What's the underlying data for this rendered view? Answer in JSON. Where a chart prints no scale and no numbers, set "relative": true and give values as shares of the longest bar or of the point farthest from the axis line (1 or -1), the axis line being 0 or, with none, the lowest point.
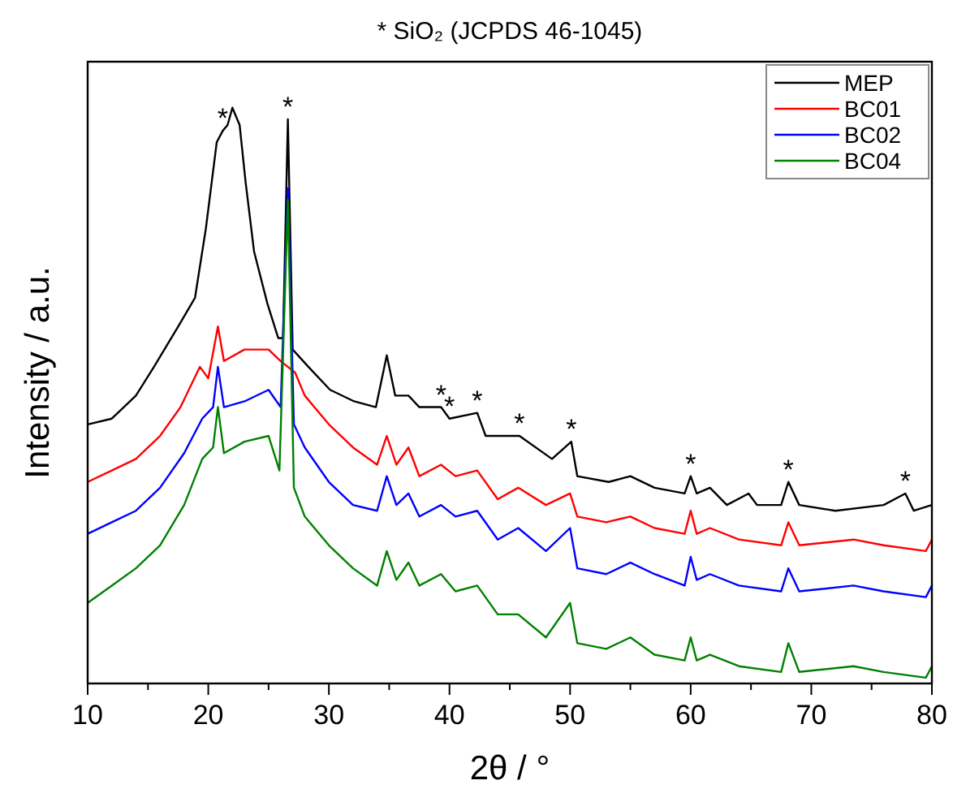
{
  "chart_data": {
    "type": "line",
    "title": "* SiO₂ (JCPDS 46-1045)",
    "xlabel": "2θ / °",
    "ylabel": "Intensity / a.u.",
    "relative": true,
    "xlim": [
      10,
      80
    ],
    "xticks": [
      10,
      {
        "value": 15,
        "label": null
      },
      20,
      {
        "value": 25,
        "label": null
      },
      30,
      {
        "value": 35,
        "label": null
      },
      40,
      {
        "value": 45,
        "label": null
      },
      50,
      {
        "value": 55,
        "label": null
      },
      60,
      {
        "value": 65,
        "label": null
      },
      70,
      {
        "value": 75,
        "label": null
      },
      80
    ],
    "legend": "top right",
    "grid": false,
    "line_style": "solid",
    "series": [
      {
        "name": "MEP",
        "color": "#000000",
        "x": [
          10,
          12,
          14,
          15.5,
          17.5,
          18.9,
          19.8,
          20.7,
          21.2,
          21.6,
          22,
          22.6,
          23.1,
          23.8,
          24.9,
          25.8,
          26.2,
          26.6,
          27,
          28.3,
          30.1,
          32.1,
          33.9,
          34.8,
          35.5,
          36.6,
          37.5,
          39.3,
          40,
          42.3,
          43,
          45.8,
          48.5,
          50.1,
          50.6,
          53.2,
          55,
          57,
          59.5,
          60,
          60.5,
          61.6,
          63,
          64.8,
          65.5,
          67.5,
          68.1,
          69,
          72,
          76,
          77.8,
          78.5,
          80
        ],
        "values": [
          0.45,
          0.46,
          0.5,
          0.55,
          0.62,
          0.67,
          0.79,
          0.94,
          0.96,
          0.97,
          1,
          0.97,
          0.87,
          0.75,
          0.66,
          0.6,
          0.6,
          0.98,
          0.58,
          0.55,
          0.51,
          0.49,
          0.48,
          0.57,
          0.5,
          0.5,
          0.48,
          0.48,
          0.46,
          0.47,
          0.43,
          0.43,
          0.39,
          0.42,
          0.36,
          0.35,
          0.36,
          0.34,
          0.33,
          0.36,
          0.33,
          0.34,
          0.31,
          0.33,
          0.31,
          0.31,
          0.35,
          0.31,
          0.3,
          0.31,
          0.33,
          0.3,
          0.31
        ]
      },
      {
        "name": "BC01",
        "color": "#ff0000",
        "x": [
          10,
          12,
          14,
          16,
          17.7,
          19.3,
          20,
          20.8,
          21.3,
          23,
          25,
          26,
          26.6,
          27.2,
          28,
          30,
          32,
          34,
          34.8,
          35.6,
          36.6,
          37.5,
          39.3,
          40.5,
          42.3,
          44,
          45.7,
          48,
          50,
          50.6,
          53,
          55,
          57,
          59.5,
          60,
          60.5,
          61.6,
          64,
          67.5,
          68.1,
          69,
          73.5,
          76,
          79.5,
          80
        ],
        "values": [
          0.35,
          0.37,
          0.39,
          0.43,
          0.48,
          0.55,
          0.53,
          0.62,
          0.56,
          0.58,
          0.58,
          0.56,
          null,
          0.54,
          0.5,
          0.45,
          0.41,
          0.38,
          0.43,
          0.38,
          0.41,
          0.36,
          0.38,
          0.36,
          0.37,
          0.32,
          0.34,
          0.31,
          0.33,
          0.29,
          0.28,
          0.29,
          0.27,
          0.26,
          0.3,
          0.26,
          0.27,
          0.25,
          0.24,
          0.28,
          0.24,
          0.25,
          0.24,
          0.23,
          0.25
        ]
      },
      {
        "name": "BC02",
        "color": "#0000ff",
        "x": [
          10,
          12,
          14,
          16,
          18,
          19.5,
          20.4,
          20.8,
          21.3,
          23,
          25,
          26,
          26.6,
          27.1,
          28,
          30,
          32,
          34,
          34.8,
          35.6,
          36.6,
          37.5,
          39.3,
          40.5,
          42.3,
          44,
          45.7,
          48,
          50,
          50.6,
          53,
          55,
          57,
          59.5,
          60,
          60.5,
          61.6,
          64,
          67.5,
          68.1,
          69,
          73.5,
          76,
          79.5,
          80
        ],
        "values": [
          0.26,
          0.28,
          0.3,
          0.34,
          0.4,
          0.46,
          0.48,
          0.55,
          0.48,
          0.49,
          0.51,
          0.48,
          0.86,
          0.45,
          0.41,
          0.35,
          0.31,
          0.3,
          0.36,
          0.31,
          0.33,
          0.29,
          0.31,
          0.29,
          0.3,
          0.25,
          0.27,
          0.23,
          0.27,
          0.2,
          0.19,
          0.21,
          0.19,
          0.17,
          0.22,
          0.18,
          0.19,
          0.17,
          0.16,
          0.2,
          0.16,
          0.17,
          0.16,
          0.15,
          0.17
        ]
      },
      {
        "name": "BC04",
        "color": "#008000",
        "x": [
          10,
          12,
          14,
          16,
          18,
          19.5,
          20.4,
          20.8,
          21.3,
          23,
          25,
          25.9,
          26.6,
          27.1,
          28,
          30,
          32,
          34,
          34.8,
          35.6,
          36.6,
          37.5,
          39.3,
          40.5,
          42.3,
          44,
          45.7,
          48,
          50,
          50.6,
          53,
          55,
          57,
          59.5,
          60,
          60.5,
          61.6,
          64,
          67.5,
          68.1,
          69,
          73.5,
          76,
          79.5,
          80
        ],
        "values": [
          0.14,
          0.17,
          0.2,
          0.24,
          0.31,
          0.39,
          0.41,
          0.48,
          0.4,
          0.42,
          0.43,
          0.37,
          0.84,
          0.34,
          0.29,
          0.24,
          0.2,
          0.17,
          0.23,
          0.18,
          0.21,
          0.17,
          0.19,
          0.16,
          0.17,
          0.12,
          0.12,
          0.08,
          0.14,
          0.07,
          0.06,
          0.08,
          0.05,
          0.04,
          0.08,
          0.04,
          0.05,
          0.03,
          0.02,
          0.07,
          0.02,
          0.03,
          0.02,
          0.01,
          0.03
        ]
      }
    ],
    "annotations": [
      {
        "text": "*",
        "x": 21.2,
        "y": 0.96
      },
      {
        "text": "*",
        "x": 26.6,
        "y": 0.98
      },
      {
        "text": "*",
        "x": 39.3,
        "y": 0.48
      },
      {
        "text": "*",
        "x": 40,
        "y": 0.46
      },
      {
        "text": "*",
        "x": 42.3,
        "y": 0.47
      },
      {
        "text": "*",
        "x": 45.8,
        "y": 0.43
      },
      {
        "text": "*",
        "x": 50.1,
        "y": 0.42
      },
      {
        "text": "*",
        "x": 60,
        "y": 0.36
      },
      {
        "text": "*",
        "x": 68.1,
        "y": 0.35
      },
      {
        "text": "*",
        "x": 77.8,
        "y": 0.33
      }
    ]
  }
}
